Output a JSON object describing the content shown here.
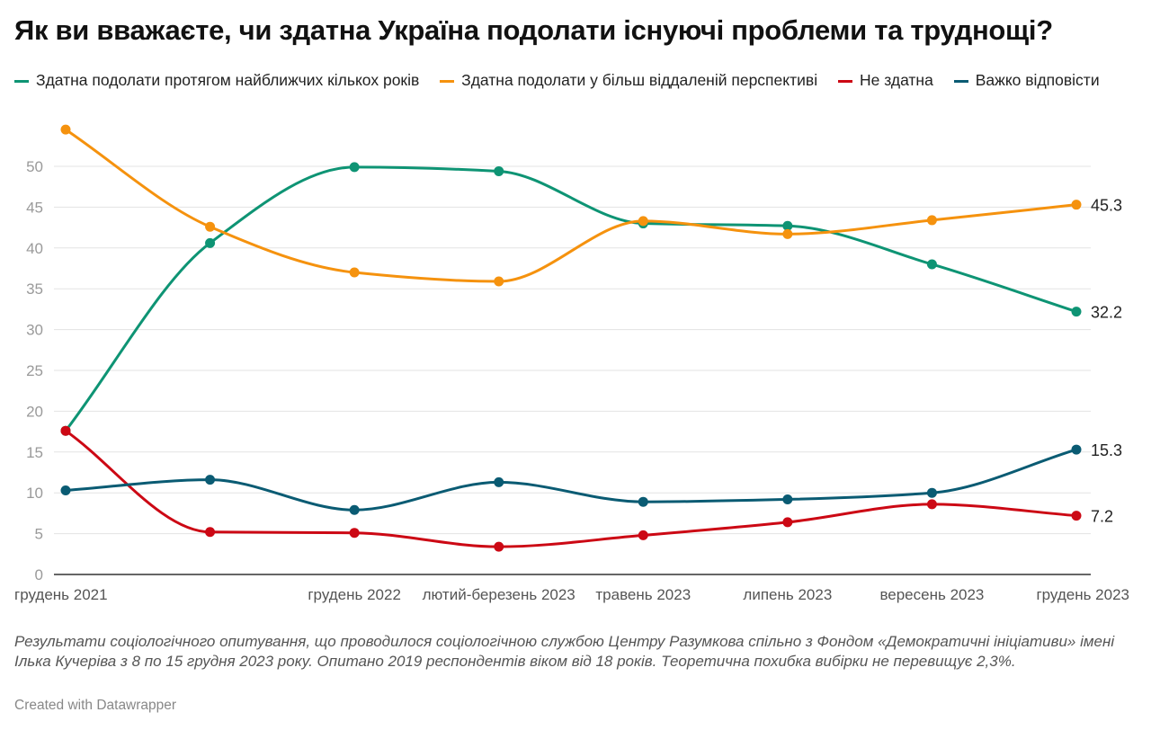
{
  "chart_data": {
    "type": "line",
    "title": "Як ви вважаєте, чи здатна Україна подолати існуючі проблеми та труднощі?",
    "categories": [
      "грудень 2021",
      "",
      "грудень 2022",
      "лютий-березень 2023",
      "травень 2023",
      "липень 2023",
      "вересень 2023",
      "грудень 2023"
    ],
    "ylim": [
      0,
      55
    ],
    "yticks": [
      0,
      5,
      10,
      15,
      20,
      25,
      30,
      35,
      40,
      45,
      50
    ],
    "grid": true,
    "legend_position": "top",
    "series": [
      {
        "name": "Здатна подолати протягом найближчих кількох років",
        "color": "#0e9474",
        "values": [
          17.6,
          40.6,
          49.9,
          49.4,
          43.0,
          42.7,
          38.0,
          32.2
        ],
        "end_label": "32.2"
      },
      {
        "name": "Здатна подолати у більш віддаленій перспективі",
        "color": "#f5920e",
        "values": [
          54.5,
          42.6,
          37.0,
          35.9,
          43.3,
          41.7,
          43.4,
          45.3
        ],
        "end_label": "45.3"
      },
      {
        "name": "Не здатна",
        "color": "#cc0814",
        "values": [
          17.6,
          5.2,
          5.1,
          3.4,
          4.8,
          6.4,
          8.6,
          7.2
        ],
        "end_label": "7.2"
      },
      {
        "name": "Важко відповісти",
        "color": "#0a5b73",
        "values": [
          10.3,
          11.6,
          7.9,
          11.3,
          8.9,
          9.2,
          10.0,
          15.3
        ],
        "end_label": "15.3"
      }
    ]
  },
  "footer": {
    "note": "Результати соціологічного опитування, що проводилося соціологічною службою Центру Разумкова спільно з Фондом «Демократичні ініціативи» імені Ілька Кучеріва з 8 по 15 грудня 2023 року. Опитано 2019 респондентів віком від 18 років. Теоретична похибка вибірки не перевищує 2,3%.",
    "credit": "Created with Datawrapper"
  }
}
